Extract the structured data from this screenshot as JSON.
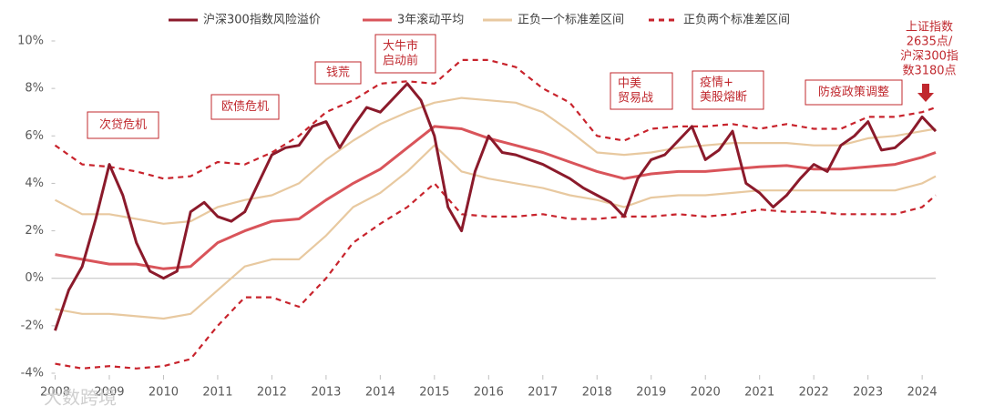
{
  "chart_data": {
    "type": "line",
    "xlim": [
      2008,
      2024.25
    ],
    "xticks": [
      2008,
      2009,
      2010,
      2011,
      2012,
      2013,
      2014,
      2015,
      2016,
      2017,
      2018,
      2019,
      2020,
      2021,
      2022,
      2023,
      2024
    ],
    "ylim": [
      -4,
      10
    ],
    "yticks": [
      {
        "value": -4,
        "label": "-4%"
      },
      {
        "value": -2,
        "label": "-2%"
      },
      {
        "value": 0,
        "label": "0%"
      },
      {
        "value": 2,
        "label": "2%"
      },
      {
        "value": 4,
        "label": "4%"
      },
      {
        "value": 6,
        "label": "6%"
      },
      {
        "value": 8,
        "label": "8%"
      },
      {
        "value": 10,
        "label": "10%"
      }
    ],
    "series": [
      {
        "name": "沪深300指数风险溢价",
        "color": "#8b1a2b",
        "x": [
          2008,
          2008.25,
          2008.5,
          2008.75,
          2009,
          2009.25,
          2009.5,
          2009.75,
          2010,
          2010.25,
          2010.5,
          2010.75,
          2011,
          2011.25,
          2011.5,
          2011.75,
          2012,
          2012.25,
          2012.5,
          2012.75,
          2013,
          2013.25,
          2013.5,
          2013.75,
          2014,
          2014.25,
          2014.5,
          2014.75,
          2015,
          2015.25,
          2015.5,
          2015.75,
          2016,
          2016.25,
          2016.5,
          2016.75,
          2017,
          2017.25,
          2017.5,
          2017.75,
          2018,
          2018.25,
          2018.5,
          2018.75,
          2019,
          2019.25,
          2019.5,
          2019.75,
          2020,
          2020.25,
          2020.5,
          2020.75,
          2021,
          2021.25,
          2021.5,
          2021.75,
          2022,
          2022.25,
          2022.5,
          2022.75,
          2023,
          2023.25,
          2023.5,
          2023.75,
          2024,
          2024.25
        ],
        "values": [
          -2.2,
          -0.5,
          0.5,
          2.5,
          4.8,
          3.5,
          1.5,
          0.3,
          0.0,
          0.3,
          2.8,
          3.2,
          2.6,
          2.4,
          2.8,
          4.0,
          5.2,
          5.5,
          5.6,
          6.4,
          6.6,
          5.5,
          6.4,
          7.2,
          7.0,
          7.6,
          8.2,
          7.5,
          6.0,
          3.0,
          2.0,
          4.5,
          6.0,
          5.3,
          5.2,
          5.0,
          4.8,
          4.5,
          4.2,
          3.8,
          3.5,
          3.2,
          2.6,
          4.2,
          5.0,
          5.2,
          5.8,
          6.4,
          5.0,
          5.4,
          6.2,
          4.0,
          3.6,
          3.0,
          3.5,
          4.2,
          4.8,
          4.5,
          5.6,
          6.0,
          6.6,
          5.4,
          5.5,
          6.0,
          6.8,
          6.2
        ]
      },
      {
        "name": "3年滚动平均",
        "color": "#d9545a",
        "x": [
          2008,
          2008.5,
          2009,
          2009.5,
          2010,
          2010.5,
          2011,
          2011.5,
          2012,
          2012.5,
          2013,
          2013.5,
          2014,
          2014.5,
          2015,
          2015.5,
          2016,
          2016.5,
          2017,
          2017.5,
          2018,
          2018.5,
          2019,
          2019.5,
          2020,
          2020.5,
          2021,
          2021.5,
          2022,
          2022.5,
          2023,
          2023.5,
          2024,
          2024.25
        ],
        "values": [
          1.0,
          0.8,
          0.6,
          0.6,
          0.4,
          0.5,
          1.5,
          2.0,
          2.4,
          2.5,
          3.3,
          4.0,
          4.6,
          5.5,
          6.4,
          6.3,
          5.9,
          5.6,
          5.3,
          4.9,
          4.5,
          4.2,
          4.4,
          4.5,
          4.5,
          4.6,
          4.7,
          4.75,
          4.6,
          4.6,
          4.7,
          4.8,
          5.1,
          5.3
        ]
      },
      {
        "name": "正负一个标准差区间",
        "color": "#e8c9a0",
        "x": [
          2008,
          2008.5,
          2009,
          2009.5,
          2010,
          2010.5,
          2011,
          2011.5,
          2012,
          2012.5,
          2013,
          2013.5,
          2014,
          2014.5,
          2015,
          2015.5,
          2016,
          2016.5,
          2017,
          2017.5,
          2018,
          2018.5,
          2019,
          2019.5,
          2020,
          2020.5,
          2021,
          2021.5,
          2022,
          2022.5,
          2023,
          2023.5,
          2024,
          2024.25
        ],
        "upper": [
          3.3,
          2.7,
          2.7,
          2.5,
          2.3,
          2.4,
          3.0,
          3.3,
          3.5,
          4.0,
          5.0,
          5.8,
          6.5,
          7.0,
          7.4,
          7.6,
          7.5,
          7.4,
          7.0,
          6.2,
          5.3,
          5.2,
          5.3,
          5.5,
          5.6,
          5.7,
          5.7,
          5.7,
          5.6,
          5.6,
          5.9,
          6.0,
          6.2,
          6.3
        ],
        "lower": [
          -1.3,
          -1.5,
          -1.5,
          -1.6,
          -1.7,
          -1.5,
          -0.5,
          0.5,
          0.8,
          0.8,
          1.8,
          3.0,
          3.6,
          4.5,
          5.6,
          4.5,
          4.2,
          4.0,
          3.8,
          3.5,
          3.3,
          3.0,
          3.4,
          3.5,
          3.5,
          3.6,
          3.7,
          3.7,
          3.7,
          3.7,
          3.7,
          3.7,
          4.0,
          4.3
        ]
      },
      {
        "name": "正负两个标准差区间",
        "color": "#c8232c",
        "dashed": true,
        "x": [
          2008,
          2008.5,
          2009,
          2009.5,
          2010,
          2010.5,
          2011,
          2011.5,
          2012,
          2012.5,
          2013,
          2013.5,
          2014,
          2014.5,
          2015,
          2015.5,
          2016,
          2016.5,
          2017,
          2017.5,
          2018,
          2018.5,
          2019,
          2019.5,
          2020,
          2020.5,
          2021,
          2021.5,
          2022,
          2022.5,
          2023,
          2023.5,
          2024,
          2024.25
        ],
        "upper": [
          5.6,
          4.8,
          4.7,
          4.5,
          4.2,
          4.3,
          4.9,
          4.8,
          5.3,
          6.0,
          7.0,
          7.5,
          8.2,
          8.3,
          8.2,
          9.2,
          9.2,
          8.9,
          8.0,
          7.4,
          6.0,
          5.8,
          6.3,
          6.4,
          6.4,
          6.5,
          6.3,
          6.5,
          6.3,
          6.3,
          6.8,
          6.8,
          7.0,
          7.2
        ],
        "lower": [
          -3.6,
          -3.8,
          -3.7,
          -3.8,
          -3.7,
          -3.4,
          -2.0,
          -0.8,
          -0.8,
          -1.2,
          0.0,
          1.5,
          2.3,
          3.0,
          4.0,
          2.7,
          2.6,
          2.6,
          2.7,
          2.5,
          2.5,
          2.6,
          2.6,
          2.7,
          2.6,
          2.7,
          2.9,
          2.8,
          2.8,
          2.7,
          2.7,
          2.7,
          3.0,
          3.5
        ]
      }
    ],
    "annotations": [
      {
        "lines": [
          "次贷危机"
        ]
      },
      {
        "lines": [
          "欧债危机"
        ]
      },
      {
        "lines": [
          "钱荒"
        ]
      },
      {
        "lines": [
          "大牛市",
          "启动前"
        ]
      },
      {
        "lines": [
          "中美",
          "贸易战"
        ]
      },
      {
        "lines": [
          "疫情+",
          "美股熔断"
        ]
      },
      {
        "lines": [
          "防疫政策调整"
        ]
      },
      {
        "lines": [
          "上证指数",
          "2635点/",
          "沪深300指",
          "数3180点"
        ]
      }
    ],
    "watermark": "大数跨境"
  }
}
